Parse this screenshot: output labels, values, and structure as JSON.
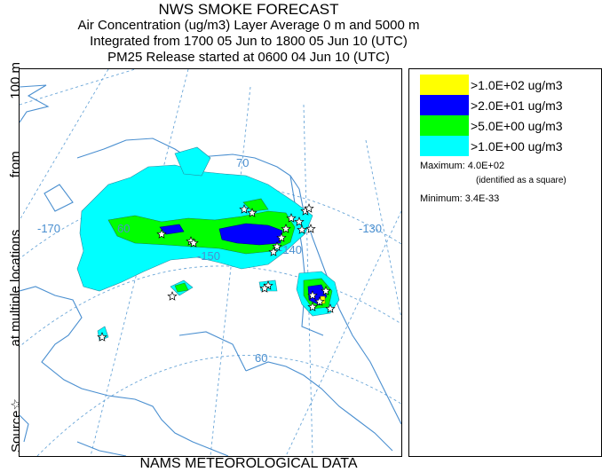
{
  "header": {
    "title": "NWS SMOKE FORECAST",
    "line2": "Air Concentration (ug/m3) Layer Average    0 m and  5000 m",
    "line3": "Integrated from 1700 05 Jun to 1800 05 Jun 10 (UTC)",
    "line4": "PM25 Release started at 0600 04 Jun 10 (UTC)"
  },
  "side_label": {
    "part1": "Source",
    "star": "☆",
    "part2": "at multiple locations",
    "part3": "from",
    "part4": "100 m"
  },
  "footer": "NAMS METEOROLOGICAL DATA",
  "legend": {
    "items": [
      {
        "label": ">1.0E+02 ug/m3",
        "color": "#ffff00"
      },
      {
        "label": ">2.0E+01 ug/m3",
        "color": "#0000ff"
      },
      {
        "label": ">5.0E+00 ug/m3",
        "color": "#00ff00"
      },
      {
        "label": ">1.0E+00 ug/m3",
        "color": "#00ffff"
      }
    ],
    "maximum_label": "Maximum:",
    "maximum_value": "4.0E+02",
    "maximum_note": "(identified as a square)",
    "minimum_label": "Minimum:",
    "minimum_value": "3.4E-33"
  },
  "map": {
    "graticule_labels": {
      "lat70": "70",
      "lat60": "60",
      "lon170": "-170",
      "lon150": "-150",
      "lon140": "-140",
      "lon130": "-130",
      "lon160_partial": "60"
    },
    "colors": {
      "coast": "#4a8fd0",
      "grid": "#6aa6d8",
      "level1": "#00ffff",
      "level2": "#00ff00",
      "level3": "#0000ff",
      "level4": "#ffff00"
    },
    "icons": [
      "source-star-icon",
      "max-square-icon"
    ]
  }
}
